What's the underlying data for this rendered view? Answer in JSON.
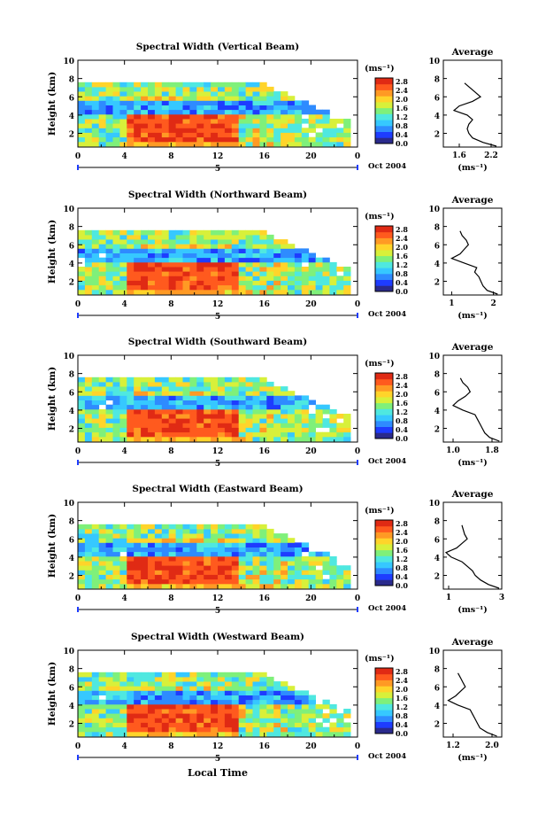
{
  "figure": {
    "x_axis_title": "Local Time",
    "date_label": "Oct 2004",
    "day_label": "5",
    "cbar_unit": "(ms⁻¹)",
    "cbar_ticks": [
      "2.8",
      "2.4",
      "2.0",
      "1.6",
      "1.2",
      "0.8",
      "0.4",
      "0.0"
    ],
    "profile_title": "Average",
    "profile_unit": "(ms⁻¹)",
    "y_label": "Height (km)"
  },
  "colors": {
    "colormap": [
      "#2a2a8c",
      "#1e3cff",
      "#2e8bff",
      "#36c8ff",
      "#4fe8e0",
      "#7ff07a",
      "#d8f03a",
      "#ffd42a",
      "#ff9a24",
      "#ff5a1e",
      "#e02a14"
    ]
  },
  "chart_data": [
    {
      "type": "heatmap",
      "title": "Spectral Width (Vertical Beam)",
      "xlabel": "Local Time",
      "ylabel": "Height (km)",
      "x_ticks": [
        "0",
        "4",
        "8",
        "12",
        "16",
        "20",
        "0"
      ],
      "y_ticks": [
        "2",
        "4",
        "6",
        "8",
        "10"
      ],
      "xlim": [
        0,
        24
      ],
      "ylim": [
        0.5,
        10
      ],
      "colorbar": {
        "label": "(ms⁻¹)",
        "ticks": [
          "2.8",
          "2.4",
          "2.0",
          "1.6",
          "1.2",
          "0.8",
          "0.4",
          "0.0"
        ],
        "range": [
          0,
          3.0
        ]
      },
      "profile": {
        "title": "Average",
        "xlabel": "(ms⁻¹)",
        "x_ticks": [
          "1.6",
          "2.2"
        ],
        "xlim": [
          1.3,
          2.4
        ],
        "heights": [
          0.6,
          1.0,
          1.5,
          2.0,
          2.5,
          3.0,
          3.5,
          4.0,
          4.5,
          5.0,
          5.5,
          6.0,
          6.5,
          7.0,
          7.5
        ],
        "values": [
          2.3,
          2.05,
          1.85,
          1.78,
          1.75,
          1.78,
          1.85,
          1.75,
          1.5,
          1.6,
          1.85,
          2.0,
          1.9,
          1.8,
          1.7
        ]
      }
    },
    {
      "type": "heatmap",
      "title": "Spectral Width (Northward Beam)",
      "xlabel": "Local Time",
      "ylabel": "Height (km)",
      "x_ticks": [
        "0",
        "4",
        "8",
        "12",
        "16",
        "20",
        "0"
      ],
      "y_ticks": [
        "2",
        "4",
        "6",
        "8",
        "10"
      ],
      "xlim": [
        0,
        24
      ],
      "ylim": [
        0.5,
        10
      ],
      "colorbar": {
        "label": "(ms⁻¹)",
        "ticks": [
          "2.8",
          "2.4",
          "2.0",
          "1.6",
          "1.2",
          "0.8",
          "0.4",
          "0.0"
        ],
        "range": [
          0,
          3.0
        ]
      },
      "profile": {
        "title": "Average",
        "xlabel": "(ms⁻¹)",
        "x_ticks": [
          "1",
          "2"
        ],
        "xlim": [
          0.8,
          2.2
        ],
        "heights": [
          0.6,
          1.0,
          1.5,
          2.0,
          2.5,
          3.0,
          3.5,
          4.0,
          4.5,
          5.0,
          5.5,
          6.0,
          6.5,
          7.0,
          7.5
        ],
        "values": [
          2.1,
          1.85,
          1.75,
          1.7,
          1.65,
          1.55,
          1.6,
          1.3,
          1.0,
          1.2,
          1.3,
          1.4,
          1.35,
          1.25,
          1.2
        ]
      }
    },
    {
      "type": "heatmap",
      "title": "Spectral Width (Southward Beam)",
      "xlabel": "Local Time",
      "ylabel": "Height (km)",
      "x_ticks": [
        "0",
        "4",
        "8",
        "12",
        "16",
        "20",
        "0"
      ],
      "y_ticks": [
        "2",
        "4",
        "6",
        "8",
        "10"
      ],
      "xlim": [
        0,
        24
      ],
      "ylim": [
        0.5,
        10
      ],
      "colorbar": {
        "label": "(ms⁻¹)",
        "ticks": [
          "2.8",
          "2.4",
          "2.0",
          "1.6",
          "1.2",
          "0.8",
          "0.4",
          "0.0"
        ],
        "range": [
          0,
          3.0
        ]
      },
      "profile": {
        "title": "Average",
        "xlabel": "(ms⁻¹)",
        "x_ticks": [
          "1.0",
          "1.8"
        ],
        "xlim": [
          0.8,
          2.0
        ],
        "heights": [
          0.6,
          1.0,
          1.5,
          2.0,
          2.5,
          3.0,
          3.5,
          4.0,
          4.5,
          5.0,
          5.5,
          6.0,
          6.5,
          7.0,
          7.5
        ],
        "values": [
          1.95,
          1.75,
          1.65,
          1.6,
          1.55,
          1.5,
          1.45,
          1.2,
          1.0,
          1.1,
          1.25,
          1.35,
          1.3,
          1.2,
          1.15
        ]
      }
    },
    {
      "type": "heatmap",
      "title": "Spectral Width (Eastward Beam)",
      "xlabel": "Local Time",
      "ylabel": "Height (km)",
      "x_ticks": [
        "0",
        "4",
        "8",
        "12",
        "16",
        "20",
        "0"
      ],
      "y_ticks": [
        "2",
        "4",
        "6",
        "8",
        "10"
      ],
      "xlim": [
        0,
        24
      ],
      "ylim": [
        0.5,
        10
      ],
      "colorbar": {
        "label": "(ms⁻¹)",
        "ticks": [
          "2.8",
          "2.4",
          "2.0",
          "1.6",
          "1.2",
          "0.8",
          "0.4",
          "0.0"
        ],
        "range": [
          0,
          3.0
        ]
      },
      "profile": {
        "title": "Average",
        "xlabel": "(ms⁻¹)",
        "x_ticks": [
          "1",
          "3"
        ],
        "xlim": [
          0.8,
          3.0
        ],
        "heights": [
          0.6,
          1.0,
          1.5,
          2.0,
          2.5,
          3.0,
          3.5,
          4.0,
          4.5,
          5.0,
          5.5,
          6.0,
          6.5,
          7.0,
          7.5
        ],
        "values": [
          2.9,
          2.5,
          2.2,
          2.0,
          1.9,
          1.7,
          1.5,
          1.1,
          0.9,
          1.3,
          1.5,
          1.7,
          1.6,
          1.55,
          1.5
        ]
      }
    },
    {
      "type": "heatmap",
      "title": "Spectral Width (Westward Beam)",
      "xlabel": "Local Time",
      "ylabel": "Height (km)",
      "x_ticks": [
        "0",
        "4",
        "8",
        "12",
        "16",
        "20",
        "0"
      ],
      "y_ticks": [
        "2",
        "4",
        "6",
        "8",
        "10"
      ],
      "xlim": [
        0,
        24
      ],
      "ylim": [
        0.5,
        10
      ],
      "colorbar": {
        "label": "(ms⁻¹)",
        "ticks": [
          "2.8",
          "2.4",
          "2.0",
          "1.6",
          "1.2",
          "0.8",
          "0.4",
          "0.0"
        ],
        "range": [
          0,
          3.0
        ]
      },
      "profile": {
        "title": "Average",
        "xlabel": "(ms⁻¹)",
        "x_ticks": [
          "1.2",
          "2.0"
        ],
        "xlim": [
          1.0,
          2.2
        ],
        "heights": [
          0.6,
          1.0,
          1.5,
          2.0,
          2.5,
          3.0,
          3.5,
          4.0,
          4.5,
          5.0,
          5.5,
          6.0,
          6.5,
          7.0,
          7.5
        ],
        "values": [
          2.1,
          1.9,
          1.75,
          1.7,
          1.65,
          1.6,
          1.55,
          1.3,
          1.1,
          1.25,
          1.35,
          1.45,
          1.4,
          1.35,
          1.3
        ]
      }
    }
  ]
}
